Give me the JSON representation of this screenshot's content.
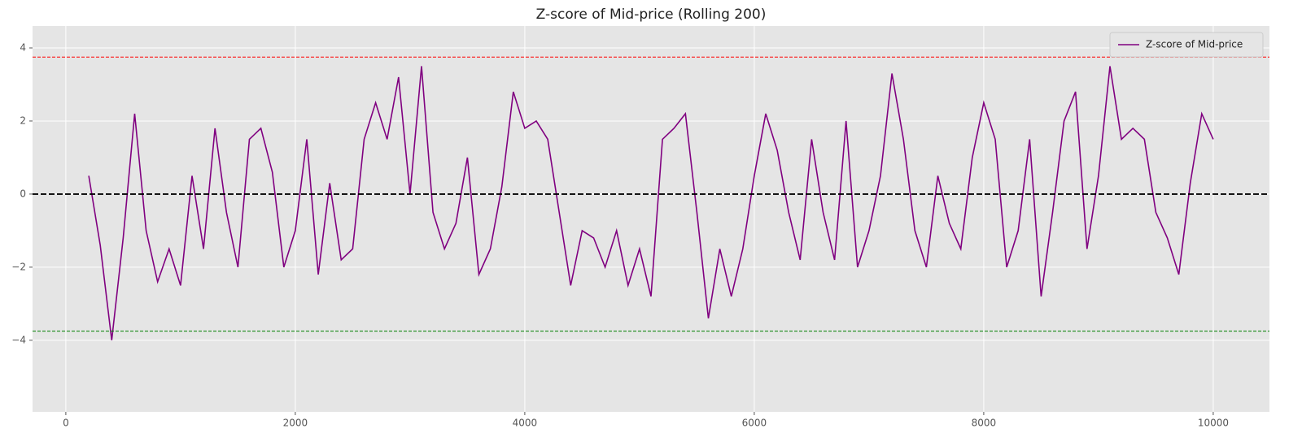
{
  "chart_data": {
    "type": "line",
    "title": "Z-score of Mid-price (Rolling 200)",
    "x": [
      200,
      300,
      400,
      500,
      600,
      700,
      800,
      900,
      1000,
      1100,
      1200,
      1300,
      1400,
      1500,
      1600,
      1700,
      1800,
      1900,
      2000,
      2100,
      2200,
      2300,
      2400,
      2500,
      2600,
      2700,
      2800,
      2900,
      3000,
      3100,
      3200,
      3300,
      3400,
      3500,
      3600,
      3700,
      3800,
      3900,
      4000,
      4100,
      4200,
      4300,
      4400,
      4500,
      4600,
      4700,
      4800,
      4900,
      5000,
      5100,
      5200,
      5300,
      5400,
      5500,
      5600,
      5700,
      5800,
      5900,
      6000,
      6100,
      6200,
      6300,
      6400,
      6500,
      6600,
      6700,
      6800,
      6900,
      7000,
      7100,
      7200,
      7300,
      7400,
      7500,
      7600,
      7700,
      7800,
      7900,
      8000,
      8100,
      8200,
      8300,
      8400,
      8500,
      8600,
      8700,
      8800,
      8900,
      9000,
      9100,
      9200,
      9300,
      9400,
      9500,
      9600,
      9700,
      9800,
      9900,
      10000
    ],
    "series": [
      {
        "name": "Z-score of Mid-price",
        "color": "#800080",
        "values": [
          0.5,
          -1.4,
          -4.0,
          -1.2,
          2.2,
          -1.0,
          -2.4,
          -1.5,
          -2.5,
          0.5,
          -1.5,
          1.8,
          -0.5,
          -2.0,
          1.5,
          1.8,
          0.6,
          -2.0,
          -1.0,
          1.5,
          -2.2,
          0.3,
          -1.8,
          -1.5,
          1.5,
          2.5,
          1.5,
          3.2,
          0.0,
          3.5,
          -0.5,
          -1.5,
          -0.8,
          1.0,
          -2.2,
          -1.5,
          0.2,
          2.8,
          1.8,
          2.0,
          1.5,
          -0.5,
          -2.5,
          -1.0,
          -1.2,
          -2.0,
          -1.0,
          -2.5,
          -1.5,
          -2.8,
          1.5,
          1.8,
          2.2,
          -0.5,
          -3.4,
          -1.5,
          -2.8,
          -1.5,
          0.5,
          2.2,
          1.2,
          -0.5,
          -1.8,
          1.5,
          -0.5,
          -1.8,
          2.0,
          -2.0,
          -1.0,
          0.5,
          3.3,
          1.5,
          -1.0,
          -2.0,
          0.5,
          -0.8,
          -1.5,
          1.0,
          2.5,
          1.5,
          -2.0,
          -1.0,
          1.5,
          -2.8,
          -0.5,
          2.0,
          2.8,
          -1.5,
          0.5,
          3.5,
          1.5,
          1.8,
          1.5,
          -0.5,
          -1.2,
          -2.2,
          0.3,
          2.2,
          1.5
        ]
      }
    ],
    "hlines": [
      {
        "y": 3.75,
        "color": "red",
        "dash": "4,2",
        "width": 1
      },
      {
        "y": -3.75,
        "color": "green",
        "dash": "4,2",
        "width": 1
      },
      {
        "y": 0,
        "color": "black",
        "dash": "7,3",
        "width": 1.8
      }
    ],
    "xlim": [
      -290,
      10490
    ],
    "ylim": [
      -5.96,
      4.6
    ],
    "xticks": [
      0,
      2000,
      4000,
      6000,
      8000,
      10000
    ],
    "yticks": [
      {
        "value": -4,
        "label": "−4"
      },
      {
        "value": -2,
        "label": "−2"
      },
      0,
      2,
      4
    ],
    "grid": true,
    "legend": "upper right"
  }
}
